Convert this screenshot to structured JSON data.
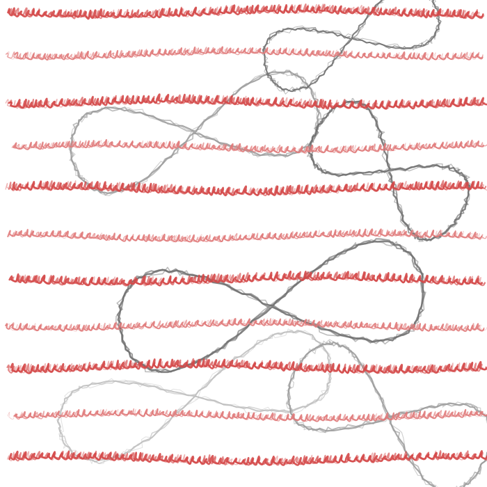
{
  "palette": {
    "background": "#ffffff",
    "script_strong": "#d44848",
    "script_soft": "#e07a7a",
    "loop_dark": "#6e6e6e",
    "loop_mid": "#9a9a9a",
    "loop_light": "#bdbdbd"
  },
  "artwork": {
    "description_tag": "abstract-scribble-pattern",
    "script_rows": 11,
    "loop_figures": 6
  }
}
